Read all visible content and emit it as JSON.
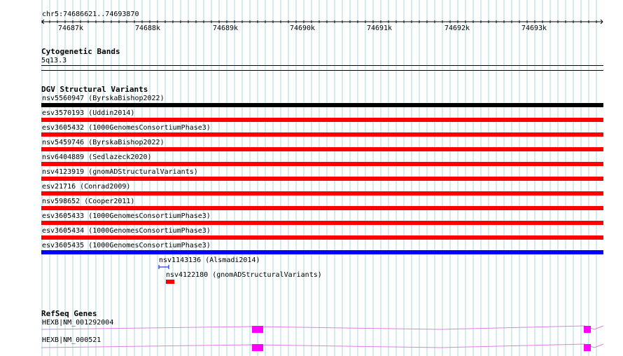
{
  "region": "chr5:74686621..74693870",
  "ruler": {
    "ticks": [
      "74687k",
      "74688k",
      "74689k",
      "74690k",
      "74691k",
      "74692k",
      "74693k"
    ]
  },
  "cytoband": {
    "title": "Cytogenetic Bands",
    "band": "5q13.3"
  },
  "dgv": {
    "title": "DGV Structural Variants",
    "variants": [
      {
        "label": "nsv5560947 (ByrskaBishop2022)",
        "color": "#000000"
      },
      {
        "label": "esv3570193 (Uddin2014)",
        "color": "#ff0000"
      },
      {
        "label": "esv3605432 (1000GenomesConsortiumPhase3)",
        "color": "#ff0000"
      },
      {
        "label": "nsv5459746 (ByrskaBishop2022)",
        "color": "#ff0000"
      },
      {
        "label": "nsv6404889 (Sedlazeck2020)",
        "color": "#ff0000"
      },
      {
        "label": "nsv4123919 (gnomADStructuralVariants)",
        "color": "#ff0000"
      },
      {
        "label": "esv21716 (Conrad2009)",
        "color": "#ff0000"
      },
      {
        "label": "nsv598652 (Cooper2011)",
        "color": "#ff0000"
      },
      {
        "label": "esv3605433 (1000GenomesConsortiumPhase3)",
        "color": "#ff0000"
      },
      {
        "label": "esv3605434 (1000GenomesConsortiumPhase3)",
        "color": "#ff0000"
      },
      {
        "label": "esv3605435 (1000GenomesConsortiumPhase3)",
        "color": "#0000ff"
      }
    ],
    "small_variants": [
      {
        "label": "nsv1143136 (Alsmadi2014)",
        "color": "#0000ff"
      },
      {
        "label": "nsv4122180 (gnomADStructuralVariants)",
        "color": "#ff0000"
      }
    ]
  },
  "refseq": {
    "title": "RefSeq Genes",
    "transcripts": [
      {
        "label": "HEXB|NM_001292004",
        "color": "#ff00ff"
      },
      {
        "label": "HEXB|NM_000521",
        "color": "#ff00ff"
      }
    ]
  },
  "colors": {
    "grid": "#a8d8e0",
    "exon": "#ff00ff",
    "intron": "#e080e0"
  }
}
